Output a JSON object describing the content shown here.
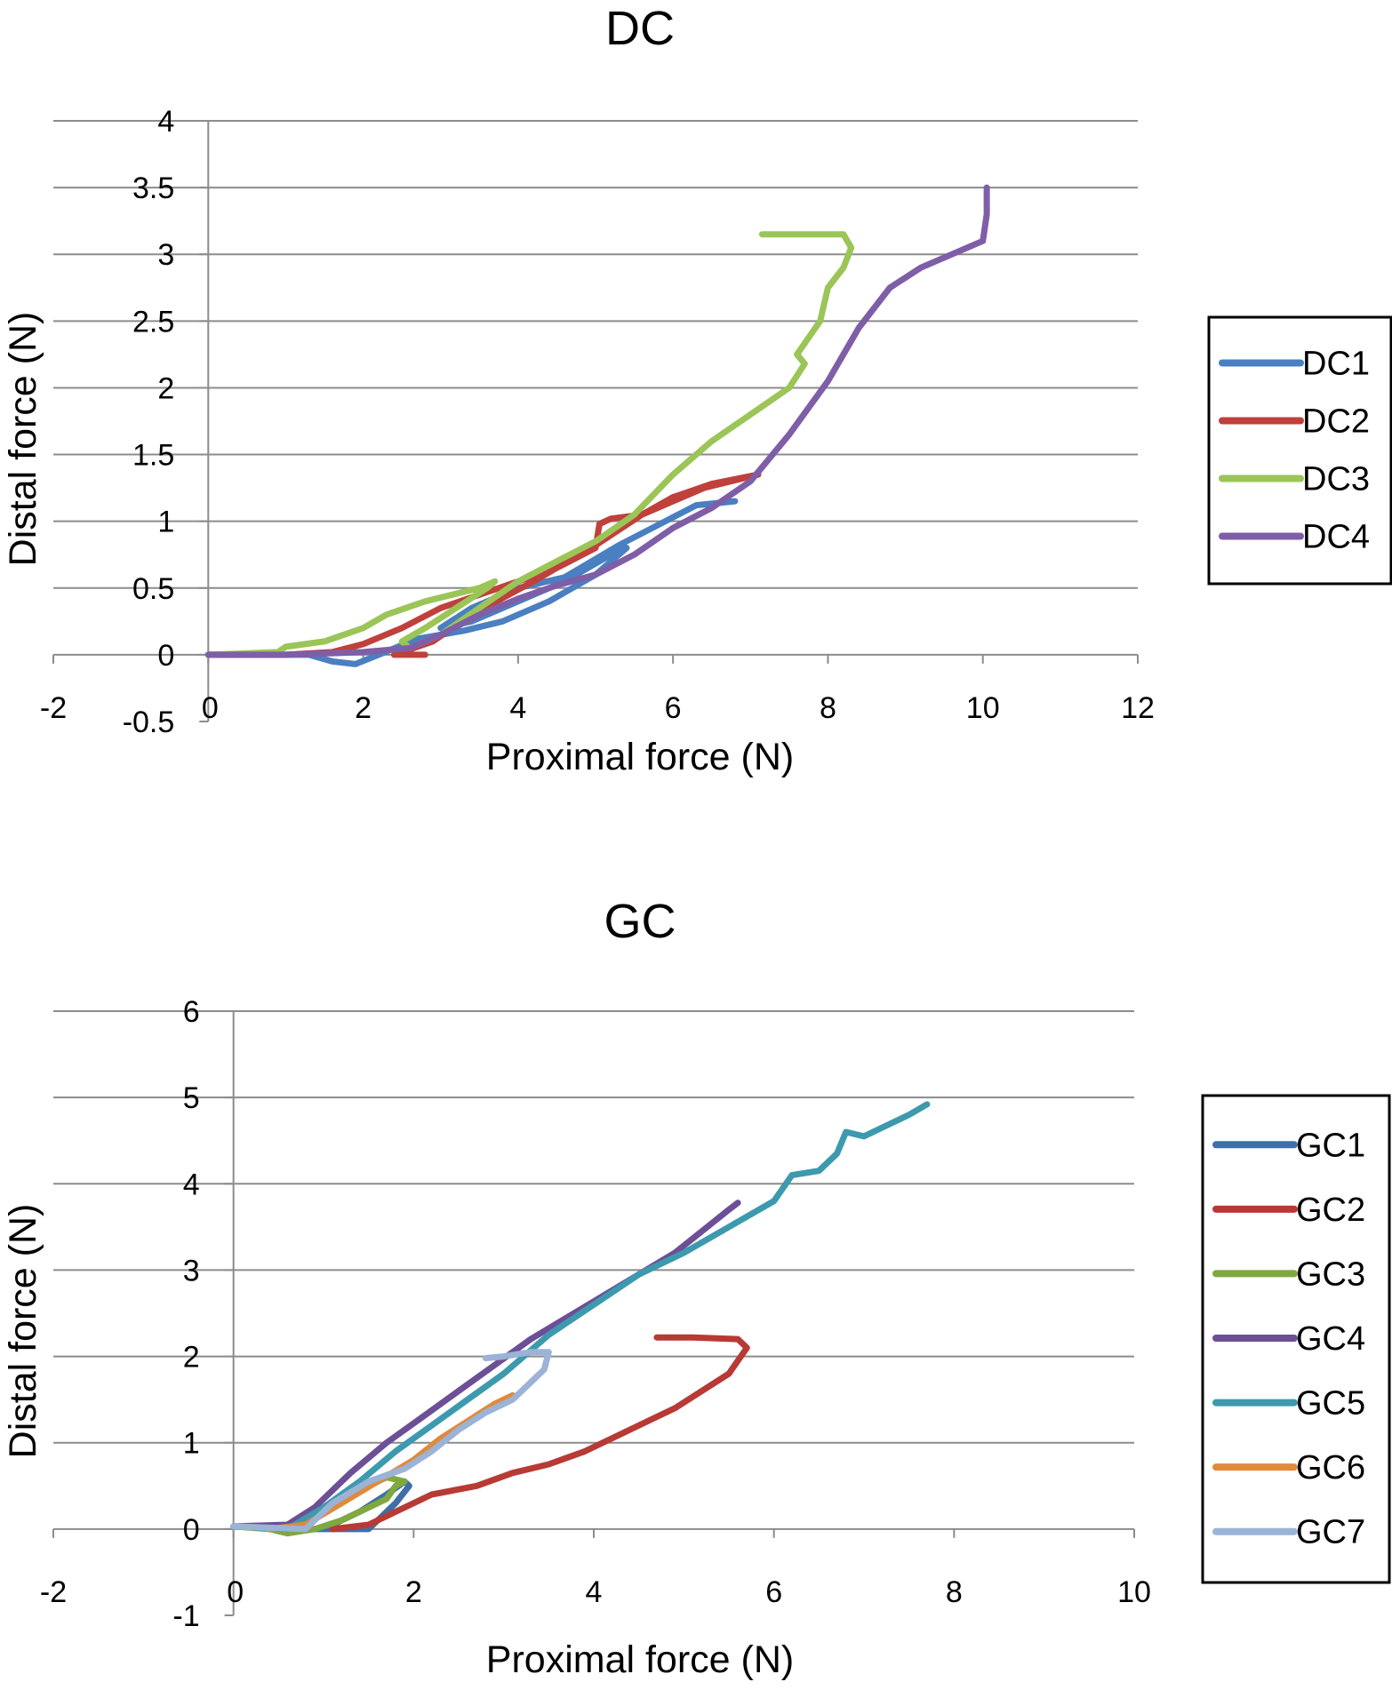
{
  "chart_data": [
    {
      "type": "line",
      "title": "DC",
      "xlabel": "Proximal force (N)",
      "ylabel": "Distal force (N)",
      "xlim": [
        -2,
        12
      ],
      "ylim": [
        -0.5,
        4
      ],
      "xticks": [
        "-2",
        "0",
        "2",
        "4",
        "6",
        "8",
        "10",
        "12"
      ],
      "yticks": [
        "-0.5",
        "0",
        "0.5",
        "1",
        "1.5",
        "2",
        "2.5",
        "3",
        "3.5",
        "4"
      ],
      "xtick_values": [
        -2,
        0,
        2,
        4,
        6,
        8,
        10,
        12
      ],
      "ytick_values": [
        -0.5,
        0,
        0.5,
        1,
        1.5,
        2,
        2.5,
        3,
        3.5,
        4
      ],
      "grid": true,
      "legend": "right",
      "series": [
        {
          "name": "DC1",
          "color": "#4a7fc1",
          "points": [
            [
              0,
              0
            ],
            [
              1.3,
              0.0
            ],
            [
              1.6,
              -0.05
            ],
            [
              1.9,
              -0.07
            ],
            [
              2.2,
              0.0
            ],
            [
              2.7,
              0.12
            ],
            [
              3.3,
              0.18
            ],
            [
              3.8,
              0.25
            ],
            [
              4.4,
              0.4
            ],
            [
              5.0,
              0.6
            ],
            [
              5.4,
              0.8
            ],
            [
              5.2,
              0.75
            ],
            [
              4.6,
              0.55
            ],
            [
              4.0,
              0.4
            ],
            [
              3.4,
              0.25
            ],
            [
              3.0,
              0.2
            ],
            [
              3.4,
              0.35
            ],
            [
              4.0,
              0.5
            ],
            [
              4.6,
              0.58
            ],
            [
              5.3,
              0.82
            ],
            [
              5.9,
              1.0
            ],
            [
              6.3,
              1.12
            ],
            [
              6.8,
              1.15
            ]
          ]
        },
        {
          "name": "DC2",
          "color": "#c0403c",
          "points": [
            [
              0,
              0
            ],
            [
              1.0,
              0.0
            ],
            [
              1.6,
              0.02
            ],
            [
              2.0,
              0.08
            ],
            [
              2.5,
              0.2
            ],
            [
              3.0,
              0.35
            ],
            [
              3.5,
              0.45
            ],
            [
              4.0,
              0.55
            ],
            [
              4.5,
              0.65
            ],
            [
              5.0,
              0.8
            ],
            [
              5.05,
              0.98
            ],
            [
              5.2,
              1.02
            ],
            [
              5.6,
              1.05
            ],
            [
              6.0,
              1.18
            ],
            [
              6.5,
              1.28
            ],
            [
              7.1,
              1.35
            ],
            [
              6.4,
              1.25
            ],
            [
              5.6,
              1.05
            ],
            [
              5.0,
              0.82
            ],
            [
              4.2,
              0.55
            ],
            [
              3.4,
              0.3
            ],
            [
              2.9,
              0.1
            ],
            [
              2.4,
              0.0
            ],
            [
              2.8,
              0.0
            ]
          ]
        },
        {
          "name": "DC3",
          "color": "#9bc556",
          "points": [
            [
              0,
              0
            ],
            [
              0.9,
              0.02
            ],
            [
              1.0,
              0.06
            ],
            [
              1.5,
              0.1
            ],
            [
              2.0,
              0.2
            ],
            [
              2.3,
              0.3
            ],
            [
              2.8,
              0.4
            ],
            [
              3.5,
              0.5
            ],
            [
              3.7,
              0.55
            ],
            [
              3.6,
              0.5
            ],
            [
              3.2,
              0.35
            ],
            [
              2.8,
              0.2
            ],
            [
              2.5,
              0.1
            ],
            [
              2.6,
              0.05
            ],
            [
              3.0,
              0.15
            ],
            [
              3.5,
              0.35
            ],
            [
              4.0,
              0.55
            ],
            [
              4.5,
              0.7
            ],
            [
              5.0,
              0.85
            ],
            [
              5.5,
              1.05
            ],
            [
              6.0,
              1.35
            ],
            [
              6.5,
              1.6
            ],
            [
              7.0,
              1.8
            ],
            [
              7.5,
              2.0
            ],
            [
              7.7,
              2.18
            ],
            [
              7.6,
              2.25
            ],
            [
              7.9,
              2.5
            ],
            [
              8.0,
              2.75
            ],
            [
              8.2,
              2.9
            ],
            [
              8.3,
              3.05
            ],
            [
              8.2,
              3.15
            ],
            [
              7.9,
              3.15
            ],
            [
              7.5,
              3.15
            ],
            [
              7.15,
              3.15
            ]
          ]
        },
        {
          "name": "DC4",
          "color": "#7f5ea8",
          "points": [
            [
              0,
              0
            ],
            [
              1.0,
              0.0
            ],
            [
              2.0,
              0.02
            ],
            [
              2.6,
              0.05
            ],
            [
              3.0,
              0.15
            ],
            [
              3.5,
              0.3
            ],
            [
              4.0,
              0.42
            ],
            [
              4.5,
              0.52
            ],
            [
              5.0,
              0.6
            ],
            [
              5.5,
              0.75
            ],
            [
              6.0,
              0.95
            ],
            [
              6.5,
              1.1
            ],
            [
              7.0,
              1.3
            ],
            [
              7.5,
              1.65
            ],
            [
              8.0,
              2.05
            ],
            [
              8.4,
              2.45
            ],
            [
              8.8,
              2.75
            ],
            [
              9.2,
              2.9
            ],
            [
              9.6,
              3.0
            ],
            [
              10.0,
              3.1
            ],
            [
              10.05,
              3.3
            ],
            [
              10.05,
              3.5
            ]
          ]
        }
      ]
    },
    {
      "type": "line",
      "title": "GC",
      "xlabel": "Proximal force (N)",
      "ylabel": "Distal force (N)",
      "xlim": [
        -2,
        10
      ],
      "ylim": [
        -1,
        6
      ],
      "xticks": [
        "-2",
        "0",
        "2",
        "4",
        "6",
        "8",
        "10"
      ],
      "yticks": [
        "-1",
        "0",
        "1",
        "2",
        "3",
        "4",
        "5",
        "6"
      ],
      "xtick_values": [
        -2,
        0,
        2,
        4,
        6,
        8,
        10
      ],
      "ytick_values": [
        -1,
        0,
        1,
        2,
        3,
        4,
        5,
        6
      ],
      "grid": true,
      "legend": "right",
      "series": [
        {
          "name": "GC1",
          "color": "#3f6fa8",
          "points": [
            [
              0,
              0.03
            ],
            [
              0.8,
              0.0
            ],
            [
              1.2,
              0.0
            ],
            [
              1.5,
              0.0
            ],
            [
              1.6,
              0.1
            ],
            [
              1.8,
              0.3
            ],
            [
              1.95,
              0.5
            ],
            [
              1.9,
              0.55
            ],
            [
              1.7,
              0.4
            ],
            [
              1.4,
              0.2
            ],
            [
              1.1,
              0.05
            ]
          ]
        },
        {
          "name": "GC2",
          "color": "#b83a35",
          "points": [
            [
              1.1,
              0.0
            ],
            [
              1.5,
              0.05
            ],
            [
              1.8,
              0.2
            ],
            [
              2.2,
              0.4
            ],
            [
              2.7,
              0.5
            ],
            [
              3.1,
              0.65
            ],
            [
              3.5,
              0.75
            ],
            [
              3.9,
              0.9
            ],
            [
              4.3,
              1.1
            ],
            [
              4.6,
              1.25
            ],
            [
              4.9,
              1.4
            ],
            [
              5.2,
              1.6
            ],
            [
              5.5,
              1.8
            ],
            [
              5.6,
              1.95
            ],
            [
              5.7,
              2.1
            ],
            [
              5.6,
              2.2
            ],
            [
              5.1,
              2.22
            ],
            [
              4.7,
              2.22
            ]
          ]
        },
        {
          "name": "GC3",
          "color": "#7fa83f",
          "points": [
            [
              0,
              0.03
            ],
            [
              0.4,
              0.0
            ],
            [
              0.6,
              -0.05
            ],
            [
              0.9,
              0.0
            ],
            [
              1.2,
              0.1
            ],
            [
              1.5,
              0.25
            ],
            [
              1.7,
              0.35
            ],
            [
              1.8,
              0.5
            ],
            [
              1.9,
              0.55
            ],
            [
              1.7,
              0.6
            ],
            [
              1.5,
              0.5
            ]
          ]
        },
        {
          "name": "GC4",
          "color": "#6d4f96",
          "points": [
            [
              0,
              0.03
            ],
            [
              0.6,
              0.05
            ],
            [
              0.9,
              0.25
            ],
            [
              1.3,
              0.65
            ],
            [
              1.7,
              1.0
            ],
            [
              2.1,
              1.3
            ],
            [
              2.5,
              1.6
            ],
            [
              2.9,
              1.9
            ],
            [
              3.3,
              2.2
            ],
            [
              3.7,
              2.45
            ],
            [
              4.1,
              2.7
            ],
            [
              4.5,
              2.95
            ],
            [
              4.9,
              3.2
            ],
            [
              5.2,
              3.45
            ],
            [
              5.5,
              3.7
            ],
            [
              5.6,
              3.78
            ]
          ]
        },
        {
          "name": "GC5",
          "color": "#3d9aae",
          "points": [
            [
              0,
              0.03
            ],
            [
              0.6,
              0.0
            ],
            [
              1.0,
              0.25
            ],
            [
              1.4,
              0.55
            ],
            [
              1.8,
              0.9
            ],
            [
              2.2,
              1.2
            ],
            [
              2.6,
              1.5
            ],
            [
              3.0,
              1.8
            ],
            [
              3.5,
              2.25
            ],
            [
              4.0,
              2.6
            ],
            [
              4.5,
              2.95
            ],
            [
              5.0,
              3.2
            ],
            [
              5.5,
              3.5
            ],
            [
              6.0,
              3.8
            ],
            [
              6.2,
              4.1
            ],
            [
              6.5,
              4.15
            ],
            [
              6.7,
              4.35
            ],
            [
              6.8,
              4.6
            ],
            [
              7.0,
              4.55
            ],
            [
              7.2,
              4.65
            ],
            [
              7.5,
              4.8
            ],
            [
              7.7,
              4.92
            ]
          ]
        },
        {
          "name": "GC6",
          "color": "#e08a3c",
          "points": [
            [
              0.4,
              0.0
            ],
            [
              0.8,
              0.05
            ],
            [
              1.2,
              0.3
            ],
            [
              1.6,
              0.55
            ],
            [
              2.0,
              0.8
            ],
            [
              2.3,
              1.05
            ],
            [
              2.6,
              1.25
            ],
            [
              2.9,
              1.45
            ],
            [
              3.1,
              1.55
            ]
          ]
        },
        {
          "name": "GC7",
          "color": "#9bb3d6",
          "points": [
            [
              0,
              0.03
            ],
            [
              0.8,
              0.0
            ],
            [
              1.1,
              0.3
            ],
            [
              1.5,
              0.55
            ],
            [
              1.9,
              0.7
            ],
            [
              2.2,
              0.9
            ],
            [
              2.5,
              1.15
            ],
            [
              2.8,
              1.35
            ],
            [
              3.1,
              1.5
            ],
            [
              3.3,
              1.7
            ],
            [
              3.45,
              1.85
            ],
            [
              3.5,
              2.05
            ],
            [
              3.3,
              2.05
            ],
            [
              3.0,
              2.0
            ],
            [
              2.8,
              1.98
            ]
          ]
        }
      ]
    }
  ]
}
